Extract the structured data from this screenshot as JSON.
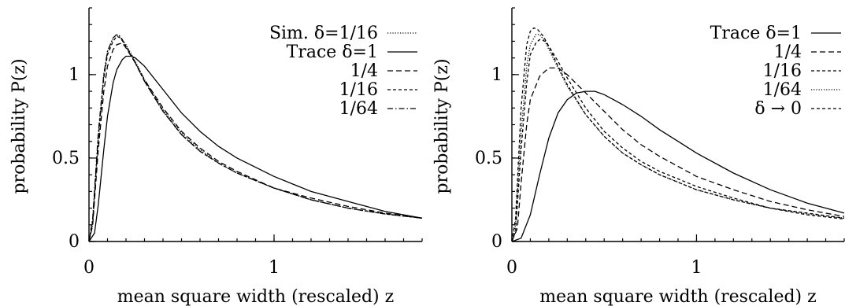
{
  "chart_data": [
    {
      "type": "line",
      "title": "",
      "xlabel": "mean square width (rescaled) z",
      "ylabel": "probability P(z)",
      "xlim": [
        0,
        1.8
      ],
      "ylim": [
        0,
        1.4
      ],
      "xticks": [
        {
          "value": 0,
          "label": "0"
        },
        {
          "value": 1,
          "label": "1"
        }
      ],
      "yticks": [
        {
          "value": 0,
          "label": "0"
        },
        {
          "value": 0.5,
          "label": "0.5"
        },
        {
          "value": 1,
          "label": "1"
        }
      ],
      "grid": false,
      "legend_position": "top-right",
      "series": [
        {
          "name": "Sim. δ=1/16",
          "dash": "dotted",
          "x": [
            0,
            0.02,
            0.05,
            0.08,
            0.1,
            0.13,
            0.15,
            0.17,
            0.2,
            0.25,
            0.3,
            0.4,
            0.5,
            0.6,
            0.7,
            0.8,
            1.0,
            1.2,
            1.4,
            1.6,
            1.8
          ],
          "y": [
            0,
            0.1,
            0.62,
            1.0,
            1.14,
            1.22,
            1.24,
            1.22,
            1.18,
            1.08,
            0.97,
            0.79,
            0.65,
            0.55,
            0.47,
            0.41,
            0.32,
            0.25,
            0.2,
            0.165,
            0.14
          ]
        },
        {
          "name": "Trace δ=1",
          "dash": "solid",
          "x": [
            0,
            0.03,
            0.05,
            0.08,
            0.1,
            0.13,
            0.15,
            0.18,
            0.2,
            0.23,
            0.25,
            0.3,
            0.4,
            0.5,
            0.6,
            0.7,
            0.8,
            1.0,
            1.2,
            1.4,
            1.6,
            1.8
          ],
          "y": [
            0,
            0.05,
            0.22,
            0.55,
            0.75,
            0.95,
            1.03,
            1.09,
            1.11,
            1.11,
            1.1,
            1.05,
            0.91,
            0.77,
            0.66,
            0.57,
            0.5,
            0.39,
            0.3,
            0.24,
            0.18,
            0.14
          ]
        },
        {
          "name": "1/4",
          "dash": "dashed",
          "x": [
            0,
            0.02,
            0.05,
            0.08,
            0.1,
            0.13,
            0.15,
            0.18,
            0.2,
            0.25,
            0.3,
            0.4,
            0.5,
            0.6,
            0.7,
            0.8,
            1.0,
            1.2,
            1.4,
            1.6,
            1.8
          ],
          "y": [
            0,
            0.1,
            0.55,
            0.9,
            1.05,
            1.15,
            1.18,
            1.19,
            1.16,
            1.07,
            0.97,
            0.8,
            0.66,
            0.56,
            0.48,
            0.42,
            0.32,
            0.26,
            0.21,
            0.17,
            0.14
          ]
        },
        {
          "name": "1/16",
          "dash": "short-dashed",
          "x": [
            0,
            0.02,
            0.05,
            0.08,
            0.1,
            0.13,
            0.15,
            0.17,
            0.2,
            0.25,
            0.3,
            0.4,
            0.5,
            0.6,
            0.7,
            0.8,
            1.0,
            1.2,
            1.4,
            1.6,
            1.8
          ],
          "y": [
            0,
            0.12,
            0.62,
            0.98,
            1.12,
            1.2,
            1.23,
            1.22,
            1.17,
            1.07,
            0.96,
            0.78,
            0.64,
            0.54,
            0.47,
            0.41,
            0.32,
            0.25,
            0.2,
            0.165,
            0.14
          ]
        },
        {
          "name": "1/64",
          "dash": "dash-dot",
          "x": [
            0,
            0.02,
            0.05,
            0.08,
            0.1,
            0.13,
            0.15,
            0.17,
            0.2,
            0.25,
            0.3,
            0.4,
            0.5,
            0.6,
            0.7,
            0.8,
            1.0,
            1.2,
            1.4,
            1.6,
            1.8
          ],
          "y": [
            0,
            0.14,
            0.65,
            1.0,
            1.14,
            1.22,
            1.24,
            1.23,
            1.17,
            1.07,
            0.96,
            0.78,
            0.64,
            0.54,
            0.47,
            0.41,
            0.32,
            0.25,
            0.2,
            0.165,
            0.14
          ]
        }
      ]
    },
    {
      "type": "line",
      "title": "",
      "xlabel": "mean square width (rescaled) z",
      "ylabel": "probability P(z)",
      "xlim": [
        0,
        1.8
      ],
      "ylim": [
        0,
        1.4
      ],
      "xticks": [
        {
          "value": 0,
          "label": "0"
        },
        {
          "value": 1,
          "label": "1"
        }
      ],
      "yticks": [
        {
          "value": 0,
          "label": "0"
        },
        {
          "value": 0.5,
          "label": "0.5"
        },
        {
          "value": 1,
          "label": "1"
        }
      ],
      "grid": false,
      "legend_position": "top-right",
      "series": [
        {
          "name": "Trace δ=1",
          "dash": "solid",
          "x": [
            0,
            0.05,
            0.1,
            0.15,
            0.2,
            0.25,
            0.3,
            0.35,
            0.4,
            0.45,
            0.5,
            0.6,
            0.7,
            0.8,
            0.9,
            1.0,
            1.2,
            1.4,
            1.6,
            1.8
          ],
          "y": [
            0,
            0.02,
            0.16,
            0.4,
            0.62,
            0.77,
            0.85,
            0.89,
            0.9,
            0.9,
            0.88,
            0.82,
            0.75,
            0.67,
            0.6,
            0.53,
            0.41,
            0.31,
            0.23,
            0.17
          ]
        },
        {
          "name": "1/4",
          "dash": "dashed",
          "x": [
            0,
            0.03,
            0.05,
            0.08,
            0.1,
            0.15,
            0.2,
            0.25,
            0.3,
            0.4,
            0.5,
            0.6,
            0.7,
            0.8,
            1.0,
            1.2,
            1.4,
            1.6,
            1.8
          ],
          "y": [
            0,
            0.08,
            0.35,
            0.7,
            0.85,
            0.99,
            1.04,
            1.04,
            1.0,
            0.89,
            0.78,
            0.67,
            0.58,
            0.51,
            0.39,
            0.31,
            0.24,
            0.19,
            0.15
          ]
        },
        {
          "name": "1/16",
          "dash": "short-dashed",
          "x": [
            0,
            0.02,
            0.05,
            0.08,
            0.1,
            0.13,
            0.15,
            0.18,
            0.2,
            0.25,
            0.3,
            0.4,
            0.5,
            0.6,
            0.7,
            0.8,
            1.0,
            1.2,
            1.4,
            1.6,
            1.8
          ],
          "y": [
            0,
            0.06,
            0.55,
            0.95,
            1.12,
            1.19,
            1.21,
            1.2,
            1.17,
            1.08,
            0.98,
            0.8,
            0.66,
            0.56,
            0.48,
            0.42,
            0.33,
            0.26,
            0.2,
            0.17,
            0.14
          ]
        },
        {
          "name": "1/64",
          "dash": "dotted",
          "x": [
            0,
            0.02,
            0.05,
            0.08,
            0.1,
            0.13,
            0.15,
            0.18,
            0.2,
            0.25,
            0.3,
            0.4,
            0.5,
            0.6,
            0.7,
            0.8,
            1.0,
            1.2,
            1.4,
            1.6,
            1.8
          ],
          "y": [
            0,
            0.1,
            0.65,
            1.05,
            1.18,
            1.24,
            1.24,
            1.2,
            1.15,
            1.04,
            0.93,
            0.76,
            0.63,
            0.53,
            0.46,
            0.4,
            0.31,
            0.25,
            0.2,
            0.165,
            0.14
          ]
        },
        {
          "name": "δ → 0",
          "dash": "short-dashed",
          "x": [
            0,
            0.02,
            0.05,
            0.08,
            0.1,
            0.12,
            0.14,
            0.17,
            0.2,
            0.25,
            0.3,
            0.4,
            0.5,
            0.6,
            0.7,
            0.8,
            1.0,
            1.2,
            1.4,
            1.6,
            1.8
          ],
          "y": [
            0,
            0.14,
            0.8,
            1.18,
            1.26,
            1.28,
            1.27,
            1.23,
            1.17,
            1.05,
            0.94,
            0.76,
            0.63,
            0.53,
            0.46,
            0.4,
            0.31,
            0.25,
            0.2,
            0.16,
            0.135
          ]
        }
      ]
    }
  ]
}
